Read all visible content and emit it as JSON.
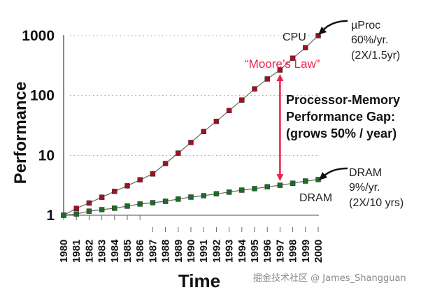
{
  "chart_data": {
    "type": "line",
    "title": "",
    "xlabel": "Time",
    "ylabel": "Performance",
    "yscale": "log",
    "ylim": [
      1,
      1000
    ],
    "xlim": [
      1980,
      2000
    ],
    "y_ticks": [
      "1",
      "10",
      "100",
      "1000"
    ],
    "y_tick_values": [
      1,
      10,
      100,
      1000
    ],
    "x": [
      1980,
      1981,
      1982,
      1983,
      1984,
      1985,
      1986,
      1987,
      1988,
      1989,
      1990,
      1991,
      1992,
      1993,
      1994,
      1995,
      1996,
      1997,
      1998,
      1999,
      2000
    ],
    "x_tick_labels": [
      "1980",
      "1981",
      "1982",
      "1983",
      "1984",
      "1985",
      "1986",
      "1987",
      "1988",
      "1989",
      "1990",
      "1991",
      "1992",
      "1993",
      "1994",
      "1995",
      "1996",
      "1997",
      "1998",
      "1999",
      "2000"
    ],
    "grid": "horizontal dotted",
    "series": [
      {
        "name": "CPU",
        "color": "#a01020",
        "values": [
          1.0,
          1.3,
          1.6,
          2.0,
          2.5,
          3.1,
          3.9,
          4.9,
          7.3,
          10.9,
          16.4,
          25,
          37,
          56,
          84,
          129,
          189,
          267,
          420,
          630,
          1000
        ]
      },
      {
        "name": "DRAM",
        "color": "#1a6e20",
        "values": [
          1.0,
          1.05,
          1.17,
          1.24,
          1.31,
          1.42,
          1.54,
          1.62,
          1.71,
          1.86,
          2.01,
          2.12,
          2.28,
          2.43,
          2.63,
          2.78,
          2.99,
          3.17,
          3.42,
          3.73,
          3.94
        ]
      }
    ],
    "annotations": {
      "cpu_label": "CPU",
      "dram_label": "DRAM",
      "moores_law": "“Moore’s Law”",
      "uproc_lines": [
        "µProc",
        "60%/yr.",
        "(2X/1.5yr)"
      ],
      "dram_lines": [
        "DRAM",
        "9%/yr.",
        "(2X/10 yrs)"
      ],
      "gap_lines": [
        "Processor-Memory",
        "Performance Gap:",
        "(grows 50% / year)"
      ],
      "gap_arrow_year": 1997,
      "gap_arrow_color": "#e8224a"
    }
  },
  "watermark": "掘金技术社区 @ James_Shangguan"
}
